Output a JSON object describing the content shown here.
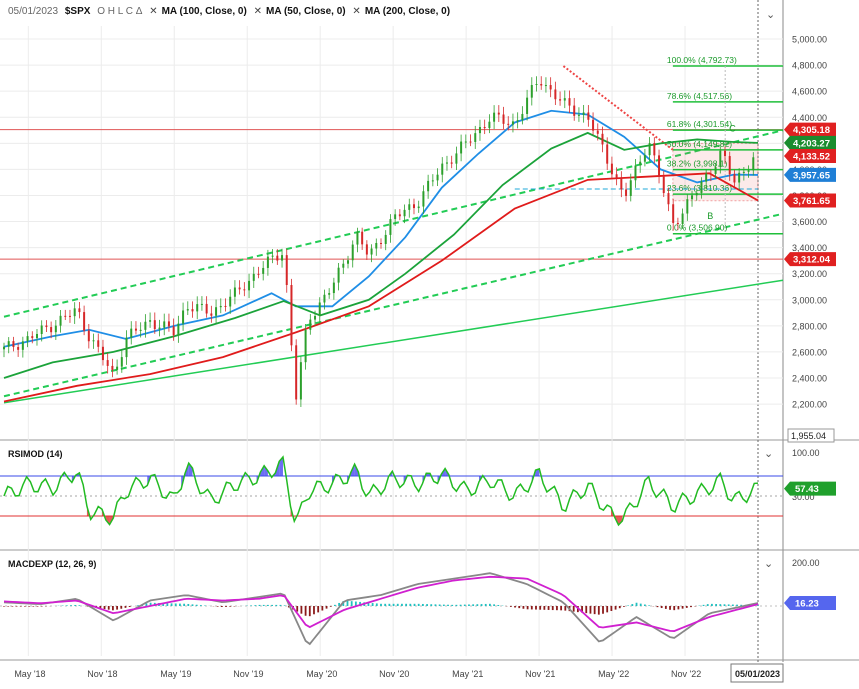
{
  "header": {
    "date": "05/01/2023",
    "symbol": "$SPX",
    "ohlc": "O H L C Δ",
    "overlays": [
      "MA (100, Close, 0)",
      "MA (50, Close, 0)",
      "MA (200, Close, 0)"
    ]
  },
  "colors": {
    "price_up": "#2ca02c",
    "price_down": "#d62728",
    "ma100": "#1f8ee6",
    "ma50": "#1ba33a",
    "ma200": "#e01b1b",
    "channel": "#22cc55",
    "fib": "#1fbf3a",
    "level_line": "#e05555",
    "rsi_line": "#22bb22",
    "rsi_overbought_fill": "#3d3df0",
    "macd_line": "#888888",
    "macd_signal": "#d020d0",
    "macd_hist_pos": "#20c0c0",
    "macd_hist_neg": "#8b1a1a"
  },
  "chart_data": [
    {
      "type": "line",
      "title": "$SPX",
      "x_labels": [
        "May '18",
        "Nov '18",
        "May '19",
        "Nov '19",
        "May '20",
        "Nov '20",
        "May '21",
        "Nov '21",
        "May '22",
        "Nov '22"
      ],
      "x_end_label": "05/01/2023",
      "ylim": [
        1955.04,
        5100
      ],
      "y_ticks": [
        2200,
        2400,
        2600,
        2800,
        3000,
        3200,
        3400,
        3600,
        3800,
        4000,
        4200,
        4400,
        4600,
        4800,
        5000
      ],
      "y_tick_labels": [
        "2,200.00",
        "2,400.00",
        "2,600.00",
        "2,800.00",
        "3,000.00",
        "3,200.00",
        "3,400.00",
        "3,600.00",
        "3,800.00",
        "4,000.00",
        "4,200.00",
        "4,400.00",
        "4,600.00",
        "4,800.00",
        "5,000.00"
      ],
      "y_min_label": "1,955.04",
      "series": [
        {
          "name": "$SPX",
          "dates": [
            "2018-03",
            "2018-05",
            "2018-07",
            "2018-09",
            "2018-10",
            "2018-12",
            "2019-01",
            "2019-03",
            "2019-05",
            "2019-06",
            "2019-08",
            "2019-10",
            "2019-12",
            "2020-02",
            "2020-03",
            "2020-04",
            "2020-06",
            "2020-08",
            "2020-09",
            "2020-11",
            "2021-01",
            "2021-03",
            "2021-05",
            "2021-07",
            "2021-09",
            "2021-11",
            "2022-01",
            "2022-03",
            "2022-05",
            "2022-06",
            "2022-08",
            "2022-10",
            "2022-12",
            "2023-02",
            "2023-03",
            "2023-05"
          ],
          "values": [
            2620,
            2700,
            2810,
            2920,
            2720,
            2420,
            2700,
            2840,
            2750,
            2960,
            2900,
            3040,
            3230,
            3380,
            2240,
            2850,
            3100,
            3500,
            3330,
            3620,
            3750,
            4020,
            4200,
            4400,
            4350,
            4700,
            4500,
            4400,
            4000,
            3780,
            4230,
            3580,
            3840,
            4130,
            3900,
            4130
          ]
        },
        {
          "name": "MA (100, Close, 0)",
          "dates": [
            "2018-03",
            "2018-07",
            "2018-10",
            "2019-01",
            "2019-05",
            "2019-09",
            "2020-01",
            "2020-03",
            "2020-06",
            "2020-09",
            "2020-12",
            "2021-03",
            "2021-06",
            "2021-09",
            "2021-12",
            "2022-03",
            "2022-06",
            "2022-09",
            "2022-12",
            "2023-03",
            "2023-05"
          ],
          "values": [
            2640,
            2720,
            2770,
            2700,
            2800,
            2880,
            3050,
            2950,
            2950,
            3180,
            3480,
            3860,
            4120,
            4360,
            4450,
            4420,
            4250,
            4000,
            3900,
            3960,
            3957.65
          ]
        },
        {
          "name": "MA (50, Close, 0)",
          "dates": [
            "2018-03",
            "2018-07",
            "2018-12",
            "2019-05",
            "2019-10",
            "2020-02",
            "2020-05",
            "2020-09",
            "2020-12",
            "2021-04",
            "2021-08",
            "2021-12",
            "2022-03",
            "2022-06",
            "2022-09",
            "2022-12",
            "2023-03",
            "2023-05"
          ],
          "values": [
            2400,
            2520,
            2600,
            2720,
            2860,
            2990,
            2880,
            3000,
            3200,
            3500,
            3880,
            4160,
            4280,
            4150,
            4200,
            4230,
            4210,
            4203.27
          ]
        },
        {
          "name": "MA (200, Close, 0)",
          "dates": [
            "2018-03",
            "2018-09",
            "2019-03",
            "2019-09",
            "2020-03",
            "2020-09",
            "2021-03",
            "2021-09",
            "2022-03",
            "2022-09",
            "2023-01",
            "2023-05"
          ],
          "values": [
            2220,
            2340,
            2430,
            2560,
            2750,
            2950,
            3300,
            3700,
            3920,
            3950,
            3970,
            3761.65
          ]
        }
      ],
      "price_labels": [
        {
          "value": 4305.18,
          "text": "4,305.18",
          "color": "#e02020"
        },
        {
          "value": 4203.27,
          "text": "4,203.27",
          "color": "#1a8c2e"
        },
        {
          "value": 4133.52,
          "text": "4,133.52",
          "color": "#e02020"
        },
        {
          "value": 3957.65,
          "text": "3,957.65",
          "color": "#1f7fd6"
        },
        {
          "value": 3761.65,
          "text": "3,761.65",
          "color": "#e02020"
        },
        {
          "value": 3312.04,
          "text": "3,312.04",
          "color": "#e02020"
        }
      ],
      "fib_levels": [
        {
          "value": 4792.73,
          "text": "100.0% (4,792.73)"
        },
        {
          "value": 4517.56,
          "text": "78.6% (4,517.56)"
        },
        {
          "value": 4301.54,
          "text": "61.8% (4,301.54)"
        },
        {
          "value": 4149.82,
          "text": "50.0% (4,149.82)"
        },
        {
          "value": 3998.1,
          "text": "38.2% (3,998.1)"
        },
        {
          "value": 3810.36,
          "text": "23.6% (3,810.36)"
        },
        {
          "value": 3506.9,
          "text": "0.0% (3,506.90)"
        }
      ],
      "horizontal_levels": [
        4305.18,
        3312.04
      ],
      "annotations": [
        "C",
        "B"
      ]
    },
    {
      "type": "line",
      "title": "RSIMOD (14)",
      "ylim": [
        0,
        100
      ],
      "y_ticks": [
        100,
        30
      ],
      "y_tick_labels": [
        "100.00",
        "30.00"
      ],
      "levels": [
        70,
        30
      ],
      "current_value": 57.43,
      "current_label": "57.43",
      "series": [
        {
          "name": "RSIMOD (14)",
          "dates": [
            "2018-03",
            "2018-05",
            "2018-07",
            "2018-09",
            "2018-10",
            "2018-12",
            "2019-01",
            "2019-03",
            "2019-05",
            "2019-06",
            "2019-08",
            "2019-10",
            "2019-12",
            "2020-02",
            "2020-03",
            "2020-04",
            "2020-06",
            "2020-08",
            "2020-09",
            "2020-11",
            "2021-01",
            "2021-03",
            "2021-05",
            "2021-07",
            "2021-09",
            "2021-11",
            "2022-01",
            "2022-03",
            "2022-05",
            "2022-06",
            "2022-08",
            "2022-10",
            "2022-12",
            "2023-02",
            "2023-03",
            "2023-05"
          ],
          "values": [
            50,
            62,
            58,
            75,
            35,
            28,
            55,
            68,
            45,
            80,
            45,
            62,
            70,
            82,
            20,
            55,
            62,
            75,
            50,
            68,
            62,
            72,
            55,
            66,
            50,
            72,
            40,
            60,
            30,
            28,
            64,
            40,
            52,
            66,
            45,
            57.43
          ]
        }
      ]
    },
    {
      "type": "line",
      "title": "MACDEXP (12, 26, 9)",
      "y_ticks": [
        200
      ],
      "y_tick_labels": [
        "200.00"
      ],
      "current_value": 16.23,
      "current_label": "16.23",
      "series": [
        {
          "name": "MACD",
          "dates": [
            "2018-03",
            "2018-06",
            "2018-09",
            "2018-12",
            "2019-03",
            "2019-06",
            "2019-09",
            "2019-12",
            "2020-02",
            "2020-04",
            "2020-07",
            "2020-10",
            "2021-01",
            "2021-04",
            "2021-07",
            "2021-10",
            "2022-01",
            "2022-04",
            "2022-07",
            "2022-10",
            "2023-01",
            "2023-05"
          ],
          "values": [
            20,
            10,
            40,
            -80,
            30,
            60,
            20,
            50,
            70,
            -220,
            30,
            60,
            120,
            150,
            180,
            120,
            20,
            -200,
            -60,
            -180,
            -40,
            16.23
          ]
        },
        {
          "name": "Signal",
          "dates": [
            "2018-03",
            "2018-06",
            "2018-09",
            "2018-12",
            "2019-03",
            "2019-06",
            "2019-09",
            "2019-12",
            "2020-02",
            "2020-04",
            "2020-07",
            "2020-10",
            "2021-01",
            "2021-04",
            "2021-07",
            "2021-10",
            "2022-01",
            "2022-04",
            "2022-07",
            "2022-10",
            "2023-01",
            "2023-05"
          ],
          "values": [
            25,
            15,
            30,
            -40,
            0,
            40,
            30,
            40,
            60,
            -120,
            -20,
            40,
            100,
            140,
            160,
            150,
            60,
            -120,
            -90,
            -140,
            -60,
            10
          ]
        }
      ]
    }
  ]
}
